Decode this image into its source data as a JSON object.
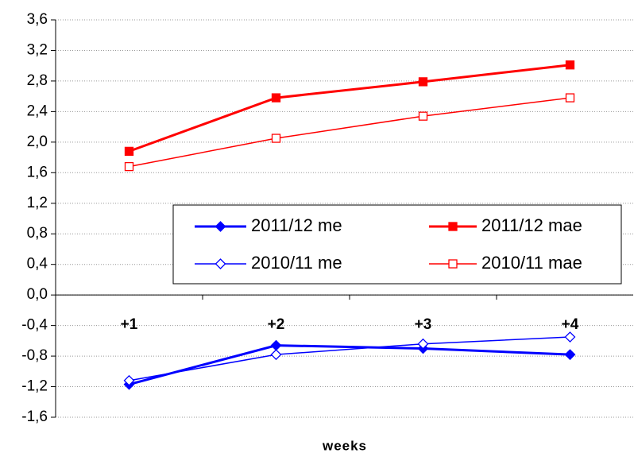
{
  "chart_data": {
    "type": "line",
    "categories": [
      "+1",
      "+2",
      "+3",
      "+4"
    ],
    "x_label": "weeks",
    "series": [
      {
        "name": "2011/12 me",
        "color": "#0000ff",
        "marker": "diamond",
        "filled": true,
        "line_width": 3,
        "values": [
          -1.17,
          -0.66,
          -0.7,
          -0.78
        ]
      },
      {
        "name": "2011/12 mae",
        "color": "#ff0000",
        "marker": "square",
        "filled": true,
        "line_width": 3,
        "values": [
          1.88,
          2.58,
          2.79,
          3.01
        ]
      },
      {
        "name": "2010/11 me",
        "color": "#0000ff",
        "marker": "diamond",
        "filled": false,
        "line_width": 1.5,
        "values": [
          -1.12,
          -0.78,
          -0.64,
          -0.55
        ]
      },
      {
        "name": "2010/11 mae",
        "color": "#ff0000",
        "marker": "square",
        "filled": false,
        "line_width": 1.5,
        "values": [
          1.68,
          2.05,
          2.34,
          2.58
        ]
      }
    ],
    "ylim": [
      -1.6,
      3.6
    ],
    "yticks": [
      {
        "value": -1.6,
        "label": "-1,6"
      },
      {
        "value": -1.2,
        "label": "-1,2"
      },
      {
        "value": -0.8,
        "label": "-0,8"
      },
      {
        "value": -0.4,
        "label": "-0,4"
      },
      {
        "value": 0,
        "label": "0,0"
      },
      {
        "value": 0.4,
        "label": "0,4"
      },
      {
        "value": 0.8,
        "label": "0,8"
      },
      {
        "value": 1.2,
        "label": "1,2"
      },
      {
        "value": 1.6,
        "label": "1,6"
      },
      {
        "value": 2.0,
        "label": "2,0"
      },
      {
        "value": 2.4,
        "label": "2,4"
      },
      {
        "value": 2.8,
        "label": "2,8"
      },
      {
        "value": 3.2,
        "label": "3,2"
      },
      {
        "value": 3.6,
        "label": "3,6"
      }
    ],
    "grid": true
  }
}
